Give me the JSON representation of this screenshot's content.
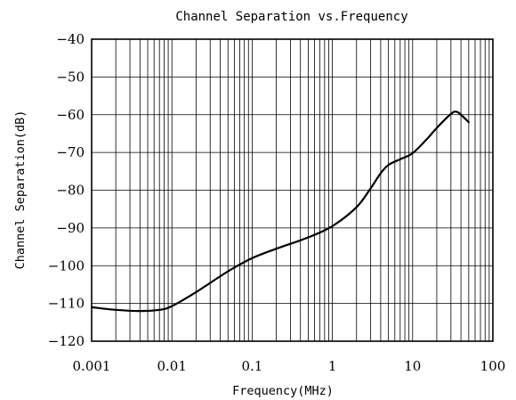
{
  "chart_data": {
    "type": "line",
    "title": "Channel Separation vs.Frequency",
    "xlabel": "Frequency(MHz)",
    "ylabel": "Channel Separation(dB)",
    "x_scale": "log",
    "xlim": [
      0.001,
      100
    ],
    "ylim": [
      -120,
      -40
    ],
    "x_tick_labels": [
      "0.001",
      "0.01",
      "0.1",
      "1",
      "10",
      "100"
    ],
    "x_ticks": [
      0.001,
      0.01,
      0.1,
      1,
      10,
      100
    ],
    "y_ticks": [
      -40,
      -50,
      -60,
      -70,
      -80,
      -90,
      -100,
      -110,
      -120
    ],
    "y_tick_labels": [
      "−40",
      "−50",
      "−60",
      "−70",
      "−80",
      "−90",
      "−100",
      "−110",
      "−120"
    ],
    "grid": true,
    "series": [
      {
        "x": [
          0.001,
          0.002,
          0.004,
          0.007,
          0.01,
          0.02,
          0.05,
          0.1,
          0.2,
          0.5,
          1,
          2,
          3,
          4,
          5,
          7,
          10,
          15,
          20,
          30,
          35,
          40,
          50
        ],
        "y": [
          -111,
          -111.7,
          -112,
          -111.7,
          -110.7,
          -107,
          -101.5,
          -98,
          -95.5,
          -92.5,
          -89.5,
          -84.5,
          -79.5,
          -75.5,
          -73.3,
          -71.8,
          -70.2,
          -66.5,
          -63.5,
          -59.8,
          -59.2,
          -60,
          -62
        ]
      }
    ]
  }
}
